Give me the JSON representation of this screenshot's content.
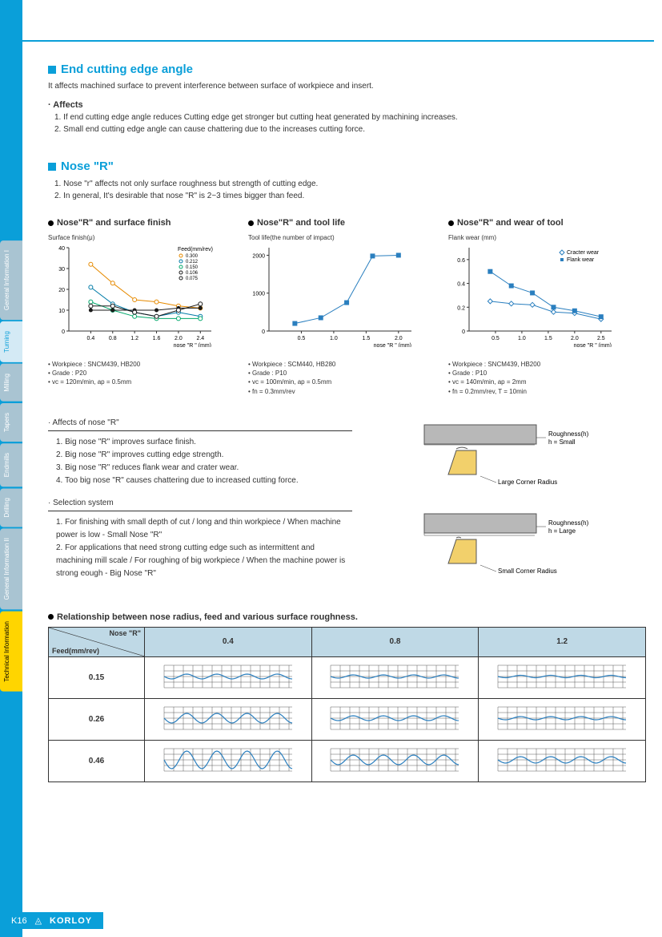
{
  "page_title": "Turning",
  "sidebar_tabs": [
    {
      "label": "General Information I"
    },
    {
      "label": "Turning",
      "active": true
    },
    {
      "label": "Milling"
    },
    {
      "label": "Tapers"
    },
    {
      "label": "Endmills"
    },
    {
      "label": "Drilling"
    },
    {
      "label": "General Information II"
    },
    {
      "label": "Technical Information",
      "yellow": true
    }
  ],
  "section1": {
    "title": "End cutting edge angle",
    "desc": "It affects machined surface to prevent interference between surface of workpiece and insert.",
    "affects_label": "· Affects",
    "affects": [
      "1. If end cutting edge angle reduces Cutting edge get stronger but cutting heat generated by machining increases.",
      "2. Small end cutting edge angle can cause chattering due to the increases cutting force."
    ]
  },
  "section2": {
    "title": "Nose \"R\"",
    "lines": [
      "1. Nose \"r\" affects not only surface roughness but strength of cutting edge.",
      "2. In general, It's desirable that nose \"R\" is 2~3 times bigger than feed."
    ]
  },
  "charts": [
    {
      "title": "Nose\"R\" and  surface finish",
      "ylabel": "Surface finish(μ)",
      "type": "line",
      "xlabel": "nose \"R \" (mm)",
      "xlim": [
        0,
        2.6
      ],
      "ylim": [
        0,
        40
      ],
      "xticks": [
        "0.4",
        "0.8",
        "1.2",
        "1.6",
        "2.0",
        "2.4"
      ],
      "yticks": [
        "0",
        "10",
        "20",
        "30",
        "40"
      ],
      "legend_title": "Feed(mm/rev)",
      "series": [
        {
          "name": "0.300",
          "color": "#e68a00",
          "marker": "circle-open",
          "x": [
            0.4,
            0.8,
            1.2,
            1.6,
            2.0,
            2.4
          ],
          "y": [
            32,
            23,
            15,
            14,
            12,
            11
          ]
        },
        {
          "name": "0.212",
          "color": "#007ba7",
          "marker": "circle-open",
          "x": [
            0.4,
            0.8,
            1.2,
            1.6,
            2.0,
            2.4
          ],
          "y": [
            21,
            13,
            9,
            7,
            9,
            7
          ]
        },
        {
          "name": "0.150",
          "color": "#00a86b",
          "marker": "circle-open",
          "x": [
            0.4,
            0.8,
            1.2,
            1.6,
            2.0,
            2.4
          ],
          "y": [
            14,
            10,
            7,
            6,
            6,
            6
          ]
        },
        {
          "name": "0.106",
          "color": "#1a1a1a",
          "marker": "circle",
          "x": [
            0.4,
            0.8,
            1.2,
            1.6,
            2.0,
            2.4
          ],
          "y": [
            10,
            10,
            10,
            10,
            11,
            11
          ]
        },
        {
          "name": "0.075",
          "color": "#1a1a1a",
          "marker": "circle-open",
          "x": [
            0.4,
            0.8,
            1.2,
            1.6,
            2.0,
            2.4
          ],
          "y": [
            12,
            12,
            9,
            7,
            10,
            13
          ]
        }
      ],
      "notes": [
        "• Workpiece : SNCM439, HB200",
        "• Grade : P20",
        "• vc = 120m/min, ap = 0.5mm"
      ]
    },
    {
      "title": "Nose\"R\" and tool life",
      "ylabel": "Tool life(the number of impact)",
      "type": "line",
      "xlabel": "nose \"R \" (mm)",
      "xlim": [
        0,
        2.2
      ],
      "ylim": [
        0,
        2200
      ],
      "xticks": [
        "0.5",
        "1.0",
        "1.5",
        "2.0"
      ],
      "yticks": [
        "0",
        "1000",
        "2000"
      ],
      "series": [
        {
          "name": "tool-life",
          "color": "#2a7fbf",
          "marker": "square",
          "x": [
            0.4,
            0.8,
            1.2,
            1.6,
            2.0
          ],
          "y": [
            200,
            350,
            750,
            1980,
            2000
          ]
        }
      ],
      "notes": [
        "• Workpiece : SCM440, HB280",
        "• Grade : P10",
        "• vc = 100m/min, ap = 0.5mm",
        "• fn = 0.3mm/rev"
      ]
    },
    {
      "title": "Nose\"R\" and wear of tool",
      "ylabel": "Flank wear (mm)",
      "type": "line",
      "xlabel": "nose \"R \" (mm)",
      "xlim": [
        0,
        2.7
      ],
      "ylim": [
        0,
        0.7
      ],
      "xticks": [
        "0.5",
        "1.0",
        "1.5",
        "2.0",
        "2.5"
      ],
      "yticks": [
        "0",
        "0.2",
        "0.4",
        "0.6"
      ],
      "legend_pos": "top-right",
      "series": [
        {
          "name": "Cracter wear",
          "color": "#2a7fbf",
          "marker": "diamond-open",
          "x": [
            0.4,
            0.8,
            1.2,
            1.6,
            2.0,
            2.5
          ],
          "y": [
            0.25,
            0.23,
            0.22,
            0.16,
            0.15,
            0.1
          ]
        },
        {
          "name": "Flank wear",
          "color": "#2a7fbf",
          "marker": "square",
          "x": [
            0.4,
            0.8,
            1.2,
            1.6,
            2.0,
            2.5
          ],
          "y": [
            0.5,
            0.38,
            0.32,
            0.2,
            0.17,
            0.12
          ]
        }
      ],
      "notes": [
        "• Workpiece : SNCM439, HB200",
        "• Grade : P10",
        "• vc = 140m/min, ap = 2mm",
        "• fn = 0.2mm/rev, T = 10min"
      ]
    }
  ],
  "affects_nose": {
    "title": "· Affects of nose \"R\"",
    "items": [
      "1. Big nose \"R\" improves surface finish.",
      "2. Big nose \"R\" improves cutting edge strength.",
      "3. Big nose \"R\" reduces flank wear and crater wear.",
      "4. Too big nose \"R\" causes chattering due to increased cutting force."
    ]
  },
  "selection": {
    "title": "· Selection system",
    "items": [
      "1.  For finishing with small depth of cut / long and thin workpiece / When machine power is low - Small Nose \"R\"",
      "2.  For applications that need strong cutting edge such as intermittent and machining mill scale / For roughing of big workpiece / When the machine power is strong eough - Big Nose \"R\""
    ]
  },
  "diagrams": [
    {
      "corner": "Large Corner Radius",
      "roughness": "Roughness(h)\nh = Small"
    },
    {
      "corner": "Small Corner Radius",
      "roughness": "Roughness(h)\nh = Large"
    }
  ],
  "relationship": {
    "title": "Relationship between nose radius, feed and various surface roughness.",
    "col_header_label": "Nose \"R\"",
    "row_header_label": "Feed(mm/rev)",
    "columns": [
      "0.4",
      "0.8",
      "1.2"
    ],
    "rows": [
      "0.15",
      "0.26",
      "0.46"
    ],
    "wave_amplitude": [
      [
        3,
        2,
        1.5
      ],
      [
        6,
        3,
        2
      ],
      [
        11,
        6,
        4
      ]
    ],
    "grid_color": "#333",
    "wave_color": "#2a7fbf"
  },
  "footer": {
    "page": "K16",
    "brand": "KORLOY"
  }
}
